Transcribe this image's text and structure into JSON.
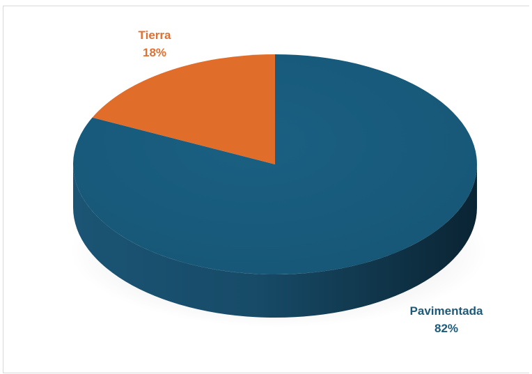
{
  "chart_data": {
    "type": "pie",
    "title": "",
    "slices": [
      {
        "label": "Pavimentada",
        "percent_label": "82%",
        "value": 82,
        "color": "#185a7b"
      },
      {
        "label": "Tierra",
        "percent_label": "18%",
        "value": 18,
        "color": "#e16d2b"
      }
    ],
    "legend": "none",
    "style": "3d"
  }
}
